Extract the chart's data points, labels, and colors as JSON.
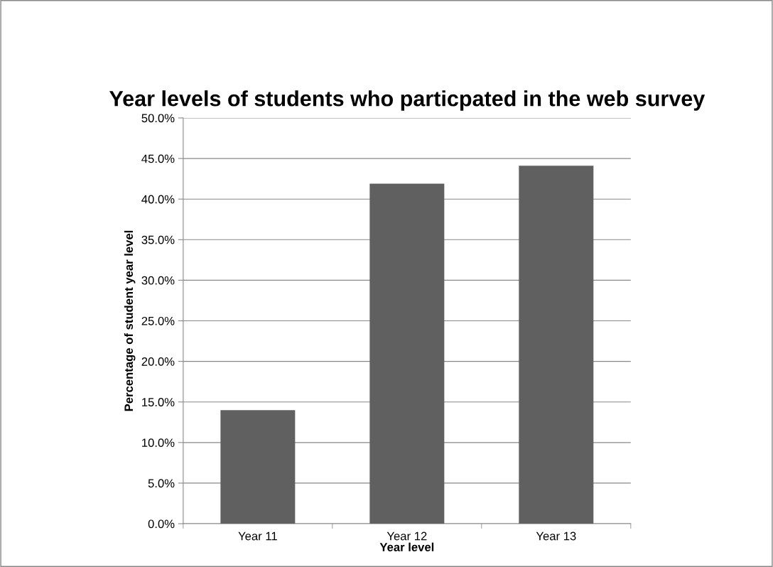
{
  "chart_data": {
    "type": "bar",
    "title": "Year levels of students who particpated in the web survey",
    "xlabel": "Year level",
    "ylabel": "Percentage of student year level",
    "categories": [
      "Year 11",
      "Year 12",
      "Year 13"
    ],
    "values": [
      14.0,
      41.9,
      44.1
    ],
    "color": "#606060",
    "ylim": [
      0,
      50
    ],
    "yticks": [
      {
        "value": 0,
        "label": "0.0%"
      },
      {
        "value": 5,
        "label": "5.0%"
      },
      {
        "value": 10,
        "label": "10.0%"
      },
      {
        "value": 15,
        "label": "15.0%"
      },
      {
        "value": 20,
        "label": "20.0%"
      },
      {
        "value": 25,
        "label": "25.0%"
      },
      {
        "value": 30,
        "label": "30.0%"
      },
      {
        "value": 35,
        "label": "35.0%"
      },
      {
        "value": 40,
        "label": "40.0%"
      },
      {
        "value": 45,
        "label": "45.0%"
      },
      {
        "value": 50,
        "label": "50.0%"
      }
    ],
    "grid": "y",
    "legend": false
  }
}
